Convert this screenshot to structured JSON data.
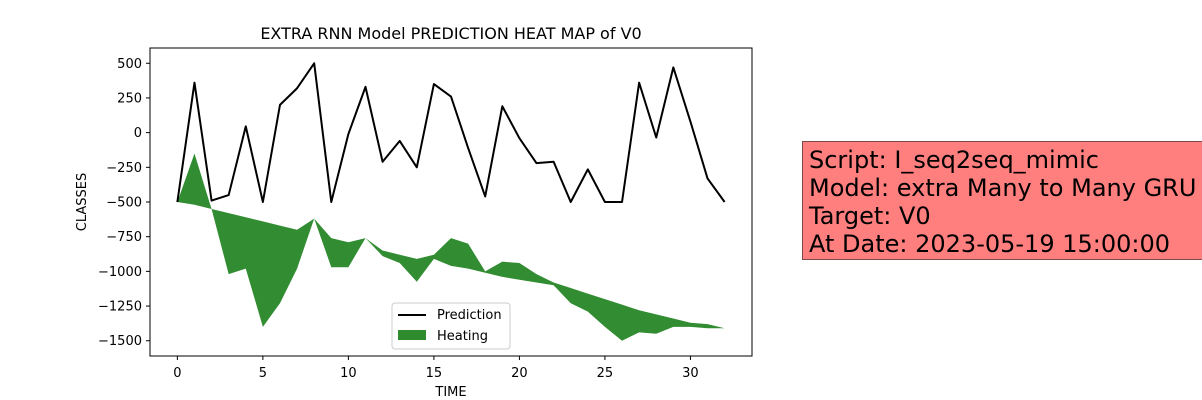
{
  "chart_data": {
    "type": "line",
    "title": "EXTRA RNN Model PREDICTION HEAT MAP of V0",
    "xlabel": "TIME",
    "ylabel": "CLASSES",
    "xlim": [
      -1.6,
      33.6
    ],
    "ylim": [
      -1610,
      610
    ],
    "xticks": [
      0,
      5,
      10,
      15,
      20,
      25,
      30
    ],
    "yticks": [
      500,
      250,
      0,
      -250,
      -500,
      -750,
      -1000,
      -1250,
      -1500
    ],
    "ytick_labels": [
      "500",
      "250",
      "0",
      "−250",
      "−500",
      "−750",
      "−1000",
      "−1250",
      "−1500"
    ],
    "grid": false,
    "legend_position": "lower-center",
    "series": [
      {
        "name": "Prediction",
        "type": "line",
        "color": "#000000",
        "x": [
          0,
          1,
          2,
          3,
          4,
          5,
          6,
          7,
          8,
          9,
          10,
          11,
          12,
          13,
          14,
          15,
          16,
          17,
          18,
          19,
          20,
          21,
          22,
          23,
          24,
          25,
          26,
          27,
          28,
          29,
          30,
          31,
          32
        ],
        "y": [
          -500,
          360,
          -490,
          -450,
          45,
          -500,
          200,
          320,
          500,
          -500,
          -10,
          330,
          -210,
          -60,
          -250,
          350,
          260,
          -110,
          -460,
          190,
          -40,
          -220,
          -210,
          -500,
          -265,
          -500,
          -500,
          360,
          -35,
          470,
          80,
          -330,
          -500
        ]
      },
      {
        "name": "Heating",
        "type": "fill_between",
        "color": "#2e8b2e",
        "x": [
          0,
          1,
          2,
          3,
          4,
          5,
          6,
          7,
          8,
          9,
          10,
          11,
          12,
          13,
          14,
          15,
          16,
          17,
          18,
          19,
          20,
          21,
          22,
          23,
          24,
          25,
          26,
          27,
          28,
          29,
          30,
          31,
          32
        ],
        "y_upper": [
          -500,
          -150,
          -550,
          -580,
          -610,
          -640,
          -670,
          -700,
          -620,
          -760,
          -790,
          -760,
          -850,
          -880,
          -910,
          -880,
          -760,
          -800,
          -1000,
          -930,
          -940,
          -1020,
          -1080,
          -1120,
          -1160,
          -1200,
          -1240,
          -1280,
          -1310,
          -1340,
          -1370,
          -1380,
          -1410
        ],
        "y_lower": [
          -500,
          -520,
          -550,
          -1020,
          -980,
          -1400,
          -1230,
          -980,
          -620,
          -970,
          -970,
          -760,
          -890,
          -940,
          -1075,
          -910,
          -960,
          -980,
          -1010,
          -1040,
          -1060,
          -1080,
          -1100,
          -1230,
          -1290,
          -1400,
          -1500,
          -1440,
          -1450,
          -1400,
          -1400,
          -1410,
          -1410
        ]
      }
    ]
  },
  "infobox": {
    "lines": [
      "Script: I_seq2seq_mimic",
      "Model: extra Many to Many GRU",
      "Target: V0",
      "At Date: 2023-05-19 15:00:00"
    ],
    "background": "#ff7f7f"
  }
}
